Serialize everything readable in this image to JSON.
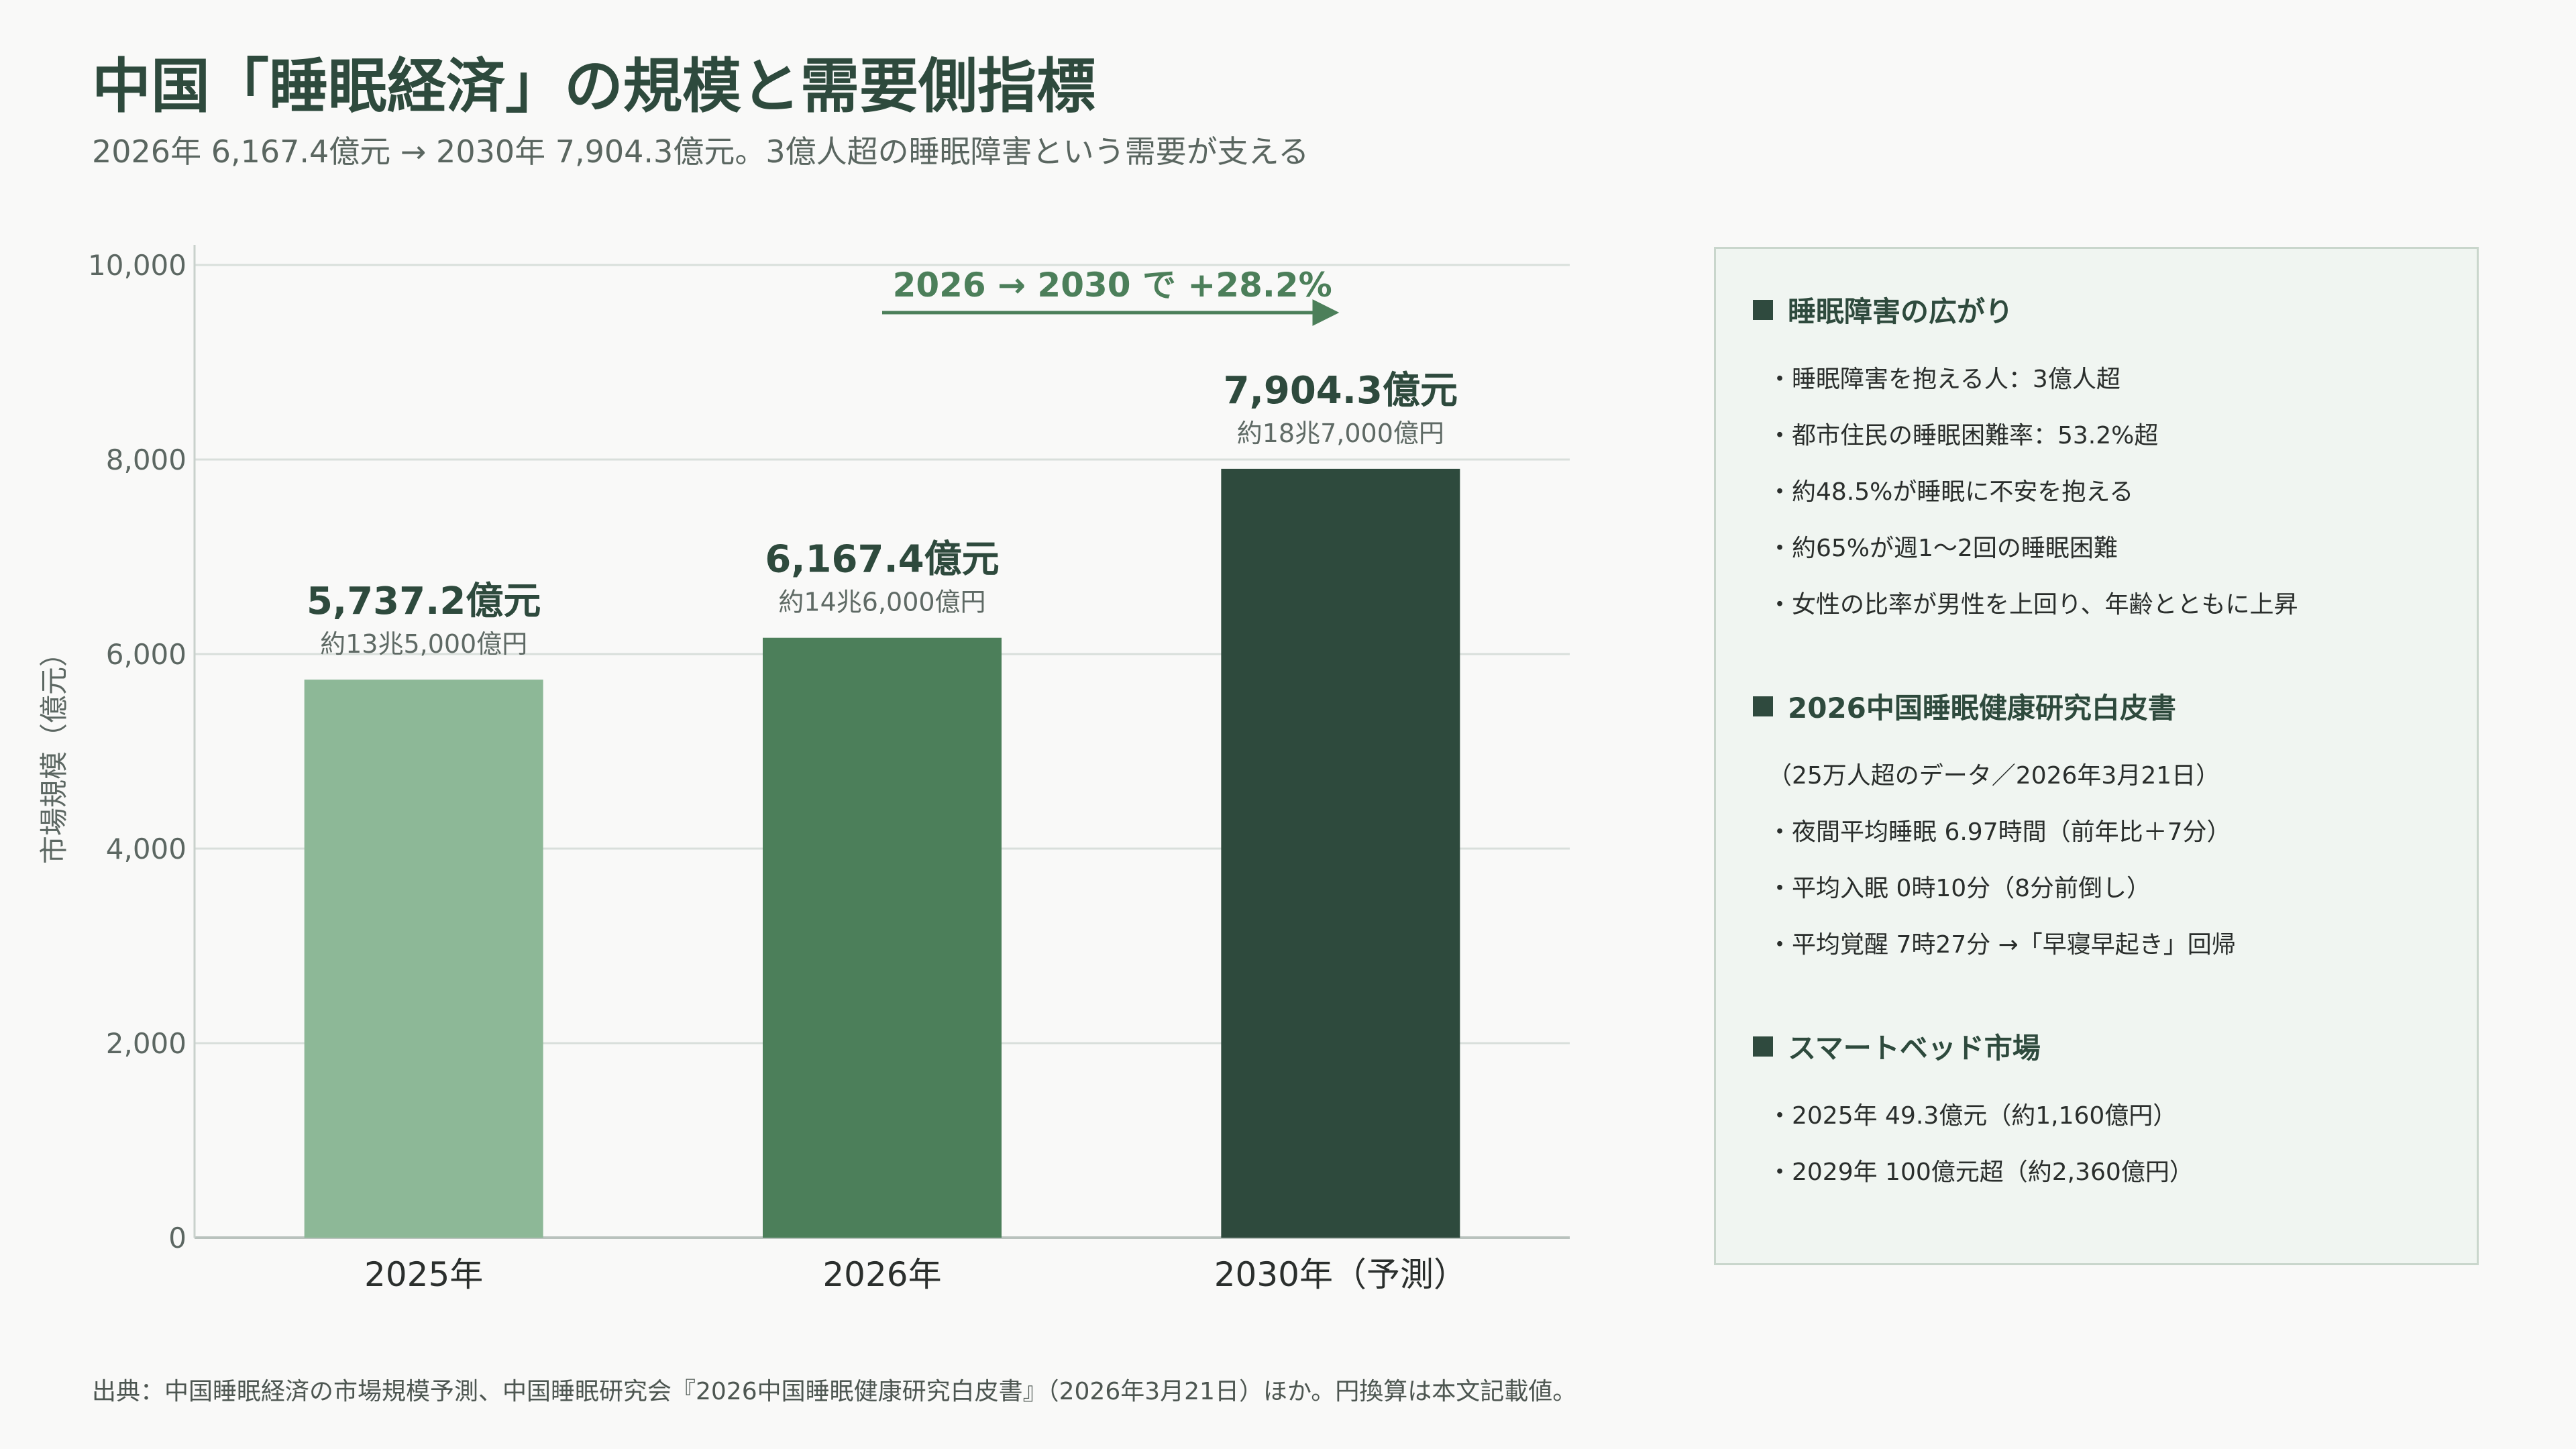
{
  "title": "中国「睡眠経済」の規模と需要側指標",
  "subtitle": "2026年 6,167.4億元 → 2030年 7,904.3億元。3億人超の睡眠障害という需要が支える",
  "colors": {
    "accent": "#2e4a3d",
    "bar_light": "#8db897",
    "bar_mid": "#4c7f5a",
    "bar_dark": "#2e4a3d",
    "growth": "#4c7f5a"
  },
  "chart_data": {
    "type": "bar",
    "categories": [
      "2025年",
      "2026年",
      "2030年（予測）"
    ],
    "values": [
      5737.2,
      6167.4,
      7904.3
    ],
    "value_labels": [
      "5,737.2億元",
      "6,167.4億元",
      "7,904.3億元"
    ],
    "sub_labels": [
      "約13兆5,000億円",
      "約14兆6,000億円",
      "約18兆7,000億円"
    ],
    "bar_colors": [
      "#8db897",
      "#4c7f5a",
      "#2e4a3d"
    ],
    "ylabel": "市場規模（億元）",
    "ylim": [
      0,
      10000
    ],
    "yticks": [
      0,
      2000,
      4000,
      6000,
      8000,
      10000
    ],
    "ytick_labels": [
      "0",
      "2,000",
      "4,000",
      "6,000",
      "8,000",
      "10,000"
    ],
    "grid": true,
    "annotation": {
      "text": "2026 → 2030 で +28.2%",
      "from": "2026年",
      "to": "2030年（予測）"
    }
  },
  "panel": {
    "sections": [
      {
        "heading": "睡眠障害の広がり",
        "items": [
          "・睡眠障害を抱える人：3億人超",
          "・都市住民の睡眠困難率：53.2%超",
          "・約48.5%が睡眠に不安を抱える",
          "・約65%が週1〜2回の睡眠困難",
          "・女性の比率が男性を上回り、年齢とともに上昇"
        ]
      },
      {
        "heading": "2026中国睡眠健康研究白皮書",
        "items": [
          "（25万人超のデータ／2026年3月21日）",
          "・夜間平均睡眠 6.97時間（前年比＋7分）",
          "・平均入眠 0時10分（8分前倒し）",
          "・平均覚醒 7時27分 →「早寝早起き」回帰"
        ]
      },
      {
        "heading": "スマートベッド市場",
        "items": [
          "・2025年 49.3億元（約1,160億円）",
          "・2029年 100億元超（約2,360億円）"
        ]
      }
    ]
  },
  "source": "出典：中国睡眠経済の市場規模予測、中国睡眠研究会『2026中国睡眠健康研究白皮書』（2026年3月21日）ほか。円換算は本文記載値。"
}
